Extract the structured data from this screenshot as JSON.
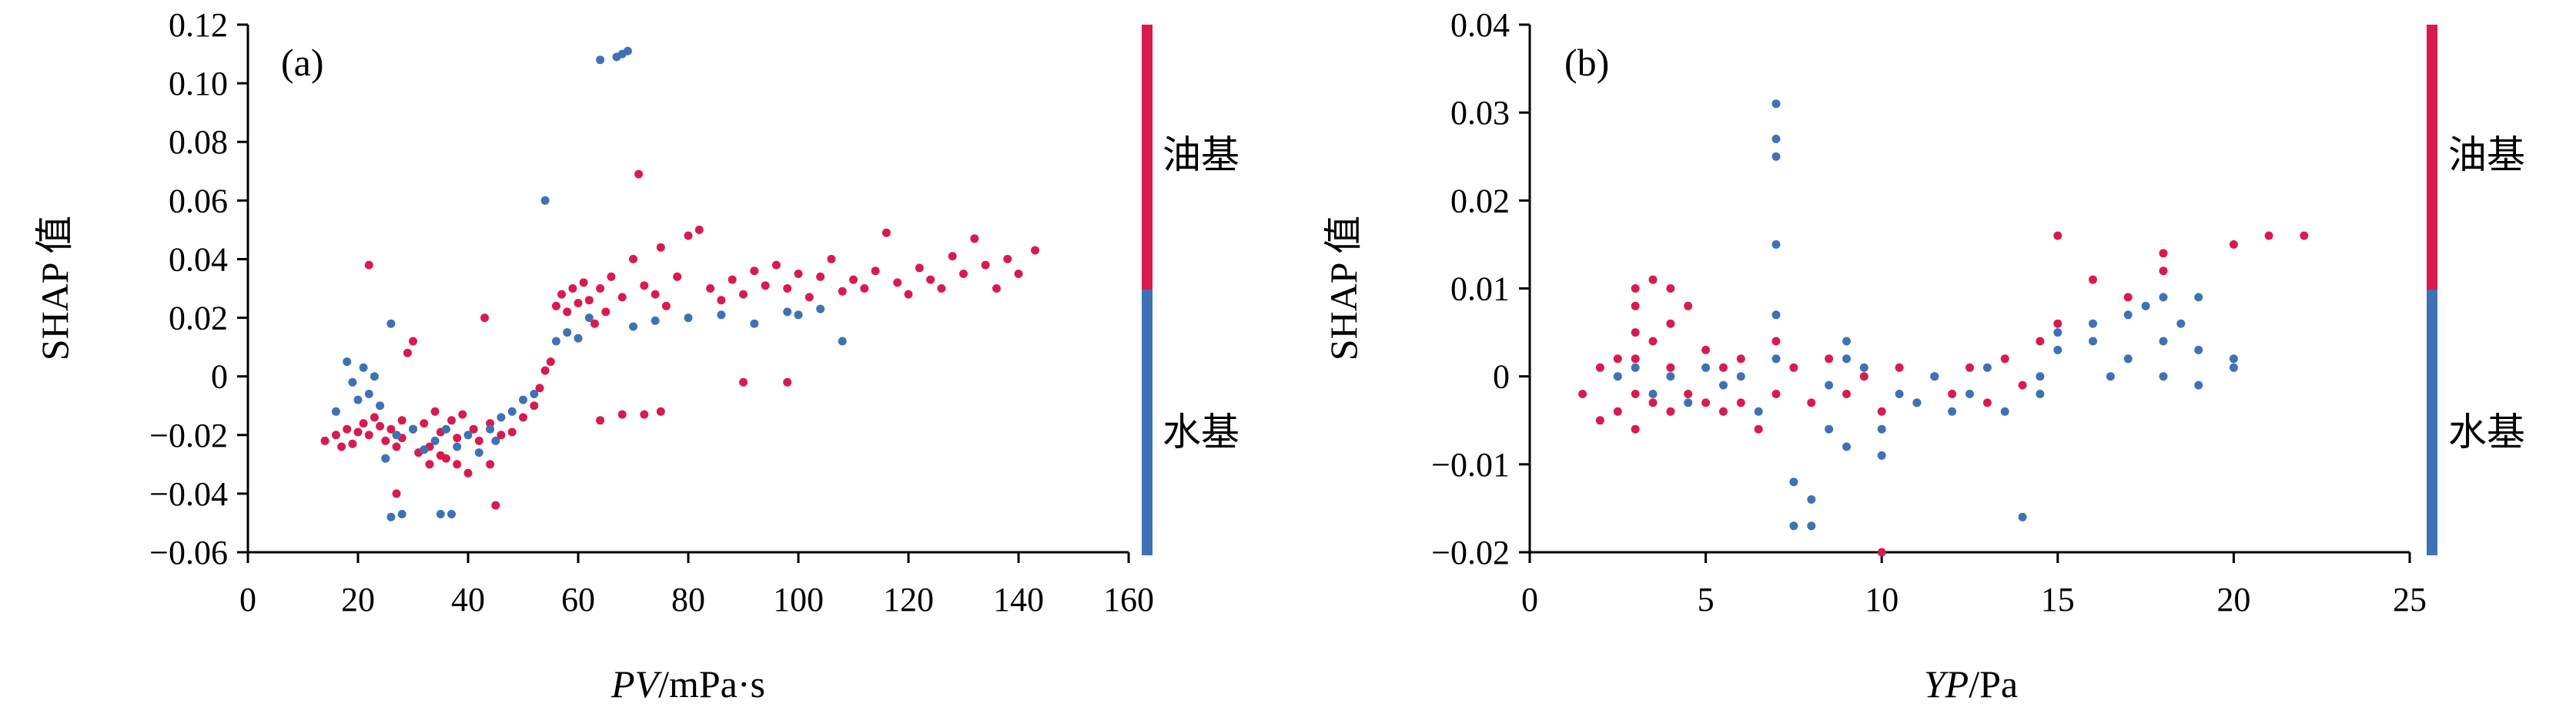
{
  "colors": {
    "oil": "#d81b4f",
    "water": "#3f72b5"
  },
  "chart_data": [
    {
      "type": "scatter",
      "panel_label": "(a)",
      "xlabel_italic": "PV",
      "xlabel_unit": "/mPa·s",
      "ylabel": "SHAP 值",
      "xlim": [
        0,
        160
      ],
      "ylim": [
        -0.06,
        0.12
      ],
      "xticks": [
        "0",
        "20",
        "40",
        "60",
        "80",
        "100",
        "120",
        "140",
        "160"
      ],
      "yticks": [
        "−0.06",
        "−0.04",
        "−0.02",
        "0",
        "0.02",
        "0.04",
        "0.06",
        "0.08",
        "0.10",
        "0.12"
      ],
      "legend": [
        "油基",
        "水基"
      ],
      "series": [
        {
          "name": "油基",
          "color": "#d81b4f",
          "points": [
            [
              14,
              -0.022
            ],
            [
              16,
              -0.02
            ],
            [
              18,
              -0.018
            ],
            [
              20,
              -0.019
            ],
            [
              21,
              -0.016
            ],
            [
              22,
              0.038
            ],
            [
              22,
              -0.02
            ],
            [
              23,
              -0.014
            ],
            [
              24,
              -0.017
            ],
            [
              25,
              -0.022
            ],
            [
              26,
              -0.018
            ],
            [
              27,
              -0.024
            ],
            [
              28,
              -0.015
            ],
            [
              28,
              -0.021
            ],
            [
              29,
              0.008
            ],
            [
              30,
              0.012
            ],
            [
              30,
              -0.018
            ],
            [
              31,
              -0.026
            ],
            [
              32,
              -0.016
            ],
            [
              33,
              -0.024
            ],
            [
              34,
              -0.012
            ],
            [
              35,
              -0.019
            ],
            [
              36,
              -0.028
            ],
            [
              37,
              -0.015
            ],
            [
              38,
              -0.021
            ],
            [
              39,
              -0.013
            ],
            [
              40,
              -0.033
            ],
            [
              41,
              -0.018
            ],
            [
              42,
              -0.022
            ],
            [
              43,
              0.02
            ],
            [
              44,
              -0.016
            ],
            [
              45,
              -0.044
            ],
            [
              46,
              -0.02
            ],
            [
              48,
              -0.019
            ],
            [
              50,
              -0.014
            ],
            [
              52,
              -0.01
            ],
            [
              53,
              -0.004
            ],
            [
              54,
              0.002
            ],
            [
              55,
              0.005
            ],
            [
              56,
              0.024
            ],
            [
              57,
              0.028
            ],
            [
              58,
              0.022
            ],
            [
              59,
              0.03
            ],
            [
              60,
              0.025
            ],
            [
              61,
              0.032
            ],
            [
              62,
              0.026
            ],
            [
              63,
              0.018
            ],
            [
              64,
              0.03
            ],
            [
              65,
              0.022
            ],
            [
              66,
              0.034
            ],
            [
              68,
              0.027
            ],
            [
              70,
              0.04
            ],
            [
              71,
              0.069
            ],
            [
              72,
              0.031
            ],
            [
              74,
              0.028
            ],
            [
              75,
              0.044
            ],
            [
              76,
              0.024
            ],
            [
              78,
              0.034
            ],
            [
              80,
              0.048
            ],
            [
              82,
              0.05
            ],
            [
              84,
              0.03
            ],
            [
              86,
              0.026
            ],
            [
              88,
              0.033
            ],
            [
              90,
              0.028
            ],
            [
              92,
              0.036
            ],
            [
              94,
              0.031
            ],
            [
              96,
              0.038
            ],
            [
              98,
              0.03
            ],
            [
              100,
              0.035
            ],
            [
              102,
              0.027
            ],
            [
              104,
              0.034
            ],
            [
              106,
              0.04
            ],
            [
              108,
              0.029
            ],
            [
              110,
              0.033
            ],
            [
              112,
              0.03
            ],
            [
              114,
              0.036
            ],
            [
              116,
              0.049
            ],
            [
              118,
              0.032
            ],
            [
              120,
              0.028
            ],
            [
              122,
              0.037
            ],
            [
              124,
              0.033
            ],
            [
              126,
              0.03
            ],
            [
              128,
              0.041
            ],
            [
              130,
              0.035
            ],
            [
              132,
              0.047
            ],
            [
              134,
              0.038
            ],
            [
              136,
              0.03
            ],
            [
              138,
              0.04
            ],
            [
              140,
              0.035
            ],
            [
              143,
              0.043
            ],
            [
              64,
              -0.015
            ],
            [
              68,
              -0.013
            ],
            [
              72,
              -0.013
            ],
            [
              75,
              -0.012
            ],
            [
              90,
              -0.002
            ],
            [
              98,
              -0.002
            ],
            [
              27,
              -0.04
            ],
            [
              33,
              -0.03
            ],
            [
              38,
              -0.03
            ],
            [
              44,
              -0.03
            ],
            [
              17,
              -0.024
            ],
            [
              19,
              -0.023
            ],
            [
              25,
              -0.028
            ],
            [
              35,
              -0.027
            ]
          ]
        },
        {
          "name": "水基",
          "color": "#3f72b5",
          "points": [
            [
              16,
              -0.012
            ],
            [
              18,
              0.005
            ],
            [
              19,
              -0.002
            ],
            [
              20,
              -0.008
            ],
            [
              21,
              0.003
            ],
            [
              22,
              -0.006
            ],
            [
              23,
              0.0
            ],
            [
              24,
              -0.01
            ],
            [
              25,
              -0.028
            ],
            [
              26,
              0.018
            ],
            [
              26,
              -0.048
            ],
            [
              27,
              -0.02
            ],
            [
              28,
              -0.047
            ],
            [
              30,
              -0.018
            ],
            [
              32,
              -0.025
            ],
            [
              34,
              -0.022
            ],
            [
              35,
              -0.047
            ],
            [
              36,
              -0.018
            ],
            [
              37,
              -0.047
            ],
            [
              38,
              -0.024
            ],
            [
              40,
              -0.02
            ],
            [
              42,
              -0.026
            ],
            [
              44,
              -0.018
            ],
            [
              45,
              -0.022
            ],
            [
              46,
              -0.014
            ],
            [
              48,
              -0.012
            ],
            [
              50,
              -0.008
            ],
            [
              52,
              -0.006
            ],
            [
              54,
              0.06
            ],
            [
              56,
              0.012
            ],
            [
              58,
              0.015
            ],
            [
              60,
              0.013
            ],
            [
              62,
              0.02
            ],
            [
              64,
              0.108
            ],
            [
              67,
              0.109
            ],
            [
              68,
              0.11
            ],
            [
              69,
              0.111
            ],
            [
              70,
              0.017
            ],
            [
              74,
              0.019
            ],
            [
              80,
              0.02
            ],
            [
              86,
              0.021
            ],
            [
              92,
              0.018
            ],
            [
              98,
              0.022
            ],
            [
              100,
              0.021
            ],
            [
              104,
              0.023
            ],
            [
              108,
              0.012
            ]
          ]
        }
      ]
    },
    {
      "type": "scatter",
      "panel_label": "(b)",
      "xlabel_italic": "YP",
      "xlabel_unit": "/Pa",
      "ylabel": "SHAP 值",
      "xlim": [
        0,
        25
      ],
      "ylim": [
        -0.02,
        0.04
      ],
      "xticks": [
        "0",
        "5",
        "10",
        "15",
        "20",
        "25"
      ],
      "yticks": [
        "−0.02",
        "−0.01",
        "0",
        "0.01",
        "0.02",
        "0.03",
        "0.04"
      ],
      "legend": [
        "油基",
        "水基"
      ],
      "series": [
        {
          "name": "油基",
          "color": "#d81b4f",
          "points": [
            [
              1.5,
              -0.002
            ],
            [
              2,
              -0.005
            ],
            [
              2,
              0.001
            ],
            [
              2.5,
              -0.004
            ],
            [
              2.5,
              0.002
            ],
            [
              3,
              0.01
            ],
            [
              3,
              0.008
            ],
            [
              3,
              0.005
            ],
            [
              3,
              0.002
            ],
            [
              3,
              -0.002
            ],
            [
              3,
              -0.006
            ],
            [
              3.5,
              0.011
            ],
            [
              3.5,
              0.004
            ],
            [
              3.5,
              -0.003
            ],
            [
              4,
              0.01
            ],
            [
              4,
              0.006
            ],
            [
              4,
              0.001
            ],
            [
              4,
              -0.004
            ],
            [
              4.5,
              0.008
            ],
            [
              4.5,
              -0.002
            ],
            [
              5,
              0.003
            ],
            [
              5,
              -0.003
            ],
            [
              5.5,
              0.001
            ],
            [
              5.5,
              -0.004
            ],
            [
              6,
              0.002
            ],
            [
              6,
              -0.003
            ],
            [
              6.5,
              -0.006
            ],
            [
              7,
              0.004
            ],
            [
              7,
              -0.002
            ],
            [
              7.5,
              0.001
            ],
            [
              8,
              -0.003
            ],
            [
              8.5,
              0.002
            ],
            [
              9,
              -0.002
            ],
            [
              9.5,
              0.0
            ],
            [
              10,
              -0.004
            ],
            [
              10,
              -0.02
            ],
            [
              10.5,
              0.001
            ],
            [
              11,
              -0.003
            ],
            [
              11.5,
              0.0
            ],
            [
              12,
              -0.002
            ],
            [
              12.5,
              0.001
            ],
            [
              13,
              -0.003
            ],
            [
              13.5,
              0.002
            ],
            [
              14,
              -0.001
            ],
            [
              14.5,
              0.004
            ],
            [
              15,
              0.016
            ],
            [
              15,
              0.006
            ],
            [
              16,
              0.011
            ],
            [
              17,
              0.009
            ],
            [
              18,
              0.014
            ],
            [
              18,
              0.012
            ],
            [
              20,
              0.015
            ],
            [
              21,
              0.016
            ],
            [
              22,
              0.016
            ]
          ]
        },
        {
          "name": "水基",
          "color": "#3f72b5",
          "points": [
            [
              2.5,
              0.0
            ],
            [
              3,
              0.001
            ],
            [
              3.5,
              -0.002
            ],
            [
              4,
              0.0
            ],
            [
              4.5,
              -0.003
            ],
            [
              5,
              0.001
            ],
            [
              5.5,
              -0.001
            ],
            [
              6,
              0.0
            ],
            [
              6.5,
              -0.004
            ],
            [
              7,
              0.031
            ],
            [
              7,
              0.027
            ],
            [
              7,
              0.025
            ],
            [
              7,
              0.015
            ],
            [
              7,
              0.007
            ],
            [
              7,
              0.002
            ],
            [
              7.5,
              -0.012
            ],
            [
              7.5,
              -0.017
            ],
            [
              8,
              -0.014
            ],
            [
              8,
              -0.017
            ],
            [
              8.5,
              -0.006
            ],
            [
              8.5,
              -0.001
            ],
            [
              9,
              -0.008
            ],
            [
              9,
              0.004
            ],
            [
              9,
              0.002
            ],
            [
              9.5,
              0.001
            ],
            [
              10,
              -0.009
            ],
            [
              10,
              -0.006
            ],
            [
              10.5,
              -0.002
            ],
            [
              11,
              -0.003
            ],
            [
              11.5,
              0.0
            ],
            [
              12,
              -0.004
            ],
            [
              12.5,
              -0.002
            ],
            [
              13,
              0.001
            ],
            [
              13.5,
              -0.004
            ],
            [
              14,
              -0.016
            ],
            [
              14.5,
              0.0
            ],
            [
              14.5,
              -0.002
            ],
            [
              15,
              0.005
            ],
            [
              15,
              0.003
            ],
            [
              16,
              0.006
            ],
            [
              16,
              0.004
            ],
            [
              16.5,
              0.0
            ],
            [
              17,
              0.007
            ],
            [
              17,
              0.002
            ],
            [
              17.5,
              0.008
            ],
            [
              18,
              0.009
            ],
            [
              18,
              0.004
            ],
            [
              18,
              0.0
            ],
            [
              18.5,
              0.006
            ],
            [
              19,
              0.009
            ],
            [
              19,
              0.003
            ],
            [
              19,
              -0.001
            ],
            [
              20,
              0.002
            ],
            [
              20,
              0.001
            ]
          ]
        }
      ]
    }
  ]
}
